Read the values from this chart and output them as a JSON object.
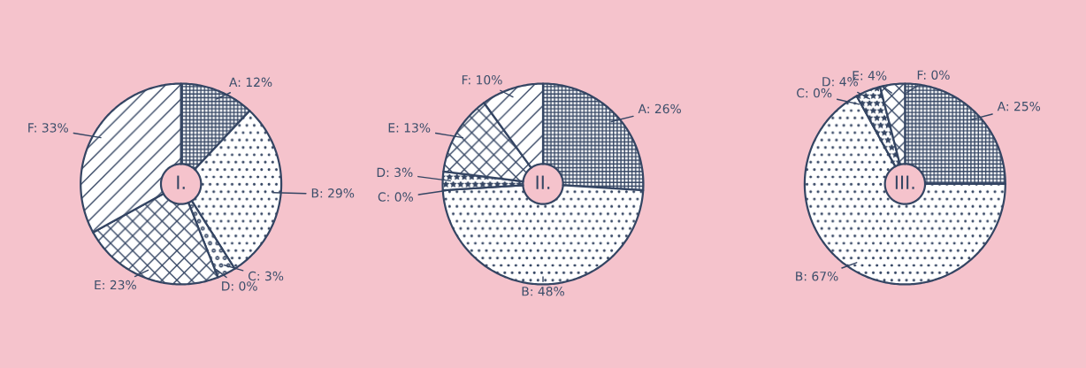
{
  "chart_data": [
    {
      "type": "donut",
      "title": "I.",
      "categories": [
        "A: 12%",
        "B: 29%",
        "C: 3%",
        "D: 0%",
        "E: 23%",
        "F: 33%"
      ],
      "values": [
        12,
        29,
        3,
        0,
        23,
        33
      ],
      "colors": [
        "#344563",
        "#344563",
        "#344563",
        "#344563",
        "#344563",
        "#344563"
      ]
    },
    {
      "type": "donut",
      "title": "II.",
      "categories": [
        "A: 26%",
        "B: 48%",
        "C: 0%",
        "D: 3%",
        "E: 13%",
        "F: 10%"
      ],
      "values": [
        26,
        48,
        0,
        3,
        13,
        10
      ],
      "colors": [
        "#344563",
        "#344563",
        "#344563",
        "#344563",
        "#344563",
        "#344563"
      ]
    },
    {
      "type": "donut",
      "title": "III.",
      "categories": [
        "A: 25%",
        "B: 67%",
        "C: 0%",
        "D: 4%",
        "E: 4%",
        "F: 0%"
      ],
      "values": [
        25,
        67,
        0,
        4,
        4,
        0
      ],
      "colors": [
        "#344563",
        "#344563",
        "#344563",
        "#344563",
        "#344563",
        "#344563"
      ]
    }
  ]
}
